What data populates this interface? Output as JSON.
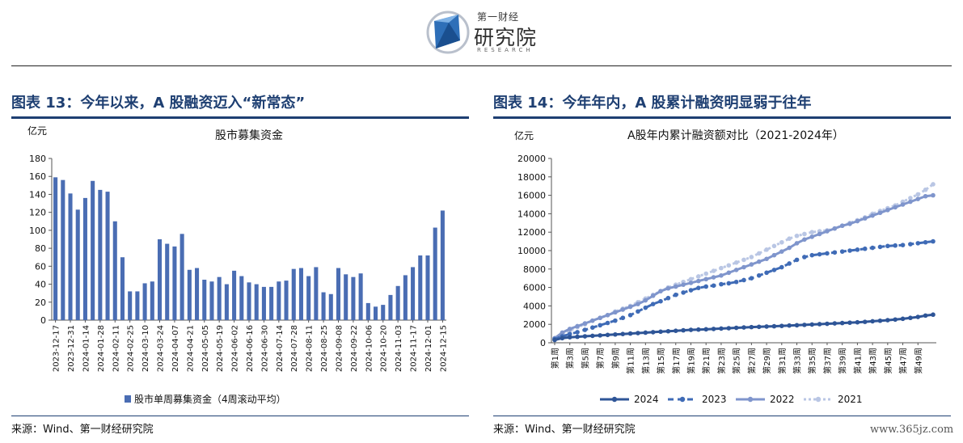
{
  "brand": {
    "name_top": "第一财经",
    "name_main": "研究院",
    "name_en": "RESEARCH",
    "colors": {
      "accent": "#1e3f72",
      "logo_blue": "#2e6fb8"
    }
  },
  "figure13": {
    "title": "图表 13：今年以来，A 股融资迈入“新常态”",
    "source": "来源：Wind、第一财经研究院"
  },
  "figure14": {
    "title": "图表 14：今年年内，A 股累计融资明显弱于往年",
    "source": "来源：Wind、第一财经研究院"
  },
  "watermark": "www.365jz.com",
  "chart_data": [
    {
      "type": "bar",
      "title": "股市募集资金",
      "ylabel": "亿元",
      "ylim": [
        0,
        180
      ],
      "yticks": [
        0,
        20,
        40,
        60,
        80,
        100,
        120,
        140,
        160,
        180
      ],
      "legend": "bottom",
      "colors": [
        "#4a6db3"
      ],
      "xtick_labels": [
        "2023-12-17",
        "2023-12-31",
        "2024-01-14",
        "2024-01-28",
        "2024-02-11",
        "2024-02-25",
        "2024-03-10",
        "2024-03-24",
        "2024-04-07",
        "2024-04-21",
        "2024-05-05",
        "2024-05-19",
        "2024-06-02",
        "2024-06-16",
        "2024-06-30",
        "2024-07-14",
        "2024-07-28",
        "2024-08-11",
        "2024-08-25",
        "2024-09-08",
        "2024-09-22",
        "2024-10-06",
        "2024-10-20",
        "2024-11-03",
        "2024-11-17",
        "2024-12-01",
        "2024-12-15"
      ],
      "series": [
        {
          "name": "股市单周募集资金（4周滚动平均）",
          "values": [
            159,
            156,
            141,
            123,
            136,
            155,
            145,
            143,
            110,
            70,
            32,
            32,
            41,
            43,
            90,
            85,
            82,
            96,
            56,
            58,
            45,
            43,
            48,
            40,
            55,
            49,
            42,
            40,
            37,
            37,
            43,
            44,
            57,
            58,
            49,
            59,
            31,
            29,
            58,
            51,
            48,
            52,
            19,
            15,
            17,
            28,
            38,
            50,
            59,
            72,
            72,
            103,
            122
          ]
        }
      ]
    },
    {
      "type": "line",
      "title": "A股年内累计融资额对比（2021-2024年）",
      "ylabel": "亿元",
      "ylim": [
        0,
        20000
      ],
      "yticks": [
        0,
        2000,
        4000,
        6000,
        8000,
        10000,
        12000,
        14000,
        16000,
        18000,
        20000
      ],
      "xtick_labels": [
        "第1周",
        "第3周",
        "第5周",
        "第7周",
        "第9周",
        "第11周",
        "第13周",
        "第15周",
        "第17周",
        "第19周",
        "第21周",
        "第23周",
        "第25周",
        "第27周",
        "第29周",
        "第31周",
        "第33周",
        "第35周",
        "第37周",
        "第39周",
        "第41周",
        "第43周",
        "第45周",
        "第47周",
        "第49周"
      ],
      "legend": "bottom",
      "series": [
        {
          "name": "2024",
          "style": "solid",
          "color": "#2e5597",
          "values": [
            300,
            500,
            600,
            650,
            700,
            750,
            800,
            850,
            900,
            950,
            1000,
            1050,
            1100,
            1150,
            1200,
            1250,
            1300,
            1350,
            1400,
            1430,
            1460,
            1500,
            1540,
            1580,
            1620,
            1660,
            1700,
            1730,
            1760,
            1790,
            1830,
            1870,
            1900,
            1940,
            1980,
            2020,
            2060,
            2100,
            2140,
            2180,
            2220,
            2270,
            2330,
            2390,
            2450,
            2520,
            2600,
            2700,
            2800,
            2950,
            3050
          ]
        },
        {
          "name": "2023",
          "style": "dashed",
          "color": "#3f6bb6",
          "values": [
            400,
            700,
            950,
            1150,
            1400,
            1650,
            1900,
            2150,
            2400,
            2700,
            3000,
            3400,
            3800,
            4200,
            4500,
            4850,
            5200,
            5450,
            5700,
            5950,
            6100,
            6200,
            6350,
            6450,
            6600,
            6800,
            7000,
            7300,
            7600,
            7900,
            8200,
            8600,
            9000,
            9300,
            9500,
            9600,
            9700,
            9800,
            9900,
            10000,
            10100,
            10200,
            10300,
            10400,
            10500,
            10550,
            10600,
            10700,
            10800,
            10900,
            11000
          ]
        },
        {
          "name": "2022",
          "style": "solid",
          "color": "#7f95cc",
          "values": [
            500,
            1100,
            1500,
            1800,
            2100,
            2400,
            2700,
            3000,
            3300,
            3600,
            3900,
            4200,
            4600,
            5100,
            5600,
            5900,
            6100,
            6300,
            6500,
            6700,
            6900,
            7100,
            7300,
            7600,
            7900,
            8200,
            8500,
            8800,
            9100,
            9500,
            9900,
            10300,
            10800,
            11200,
            11500,
            11800,
            12100,
            12400,
            12700,
            12900,
            13200,
            13500,
            13800,
            14100,
            14400,
            14700,
            15000,
            15300,
            15600,
            15900,
            16000
          ]
        },
        {
          "name": "2021",
          "style": "dotted",
          "color": "#b9c6e4",
          "values": [
            300,
            800,
            1300,
            1700,
            2000,
            2400,
            2700,
            3000,
            3400,
            3700,
            4000,
            4400,
            4800,
            5200,
            5600,
            6000,
            6300,
            6600,
            6900,
            7200,
            7500,
            7800,
            8100,
            8400,
            8700,
            9000,
            9300,
            9700,
            10100,
            10500,
            10900,
            11300,
            11600,
            11800,
            12000,
            12100,
            12200,
            12400,
            12700,
            13000,
            13300,
            13600,
            14000,
            14300,
            14600,
            14900,
            15300,
            15700,
            16100,
            16600,
            17200
          ]
        }
      ]
    }
  ]
}
